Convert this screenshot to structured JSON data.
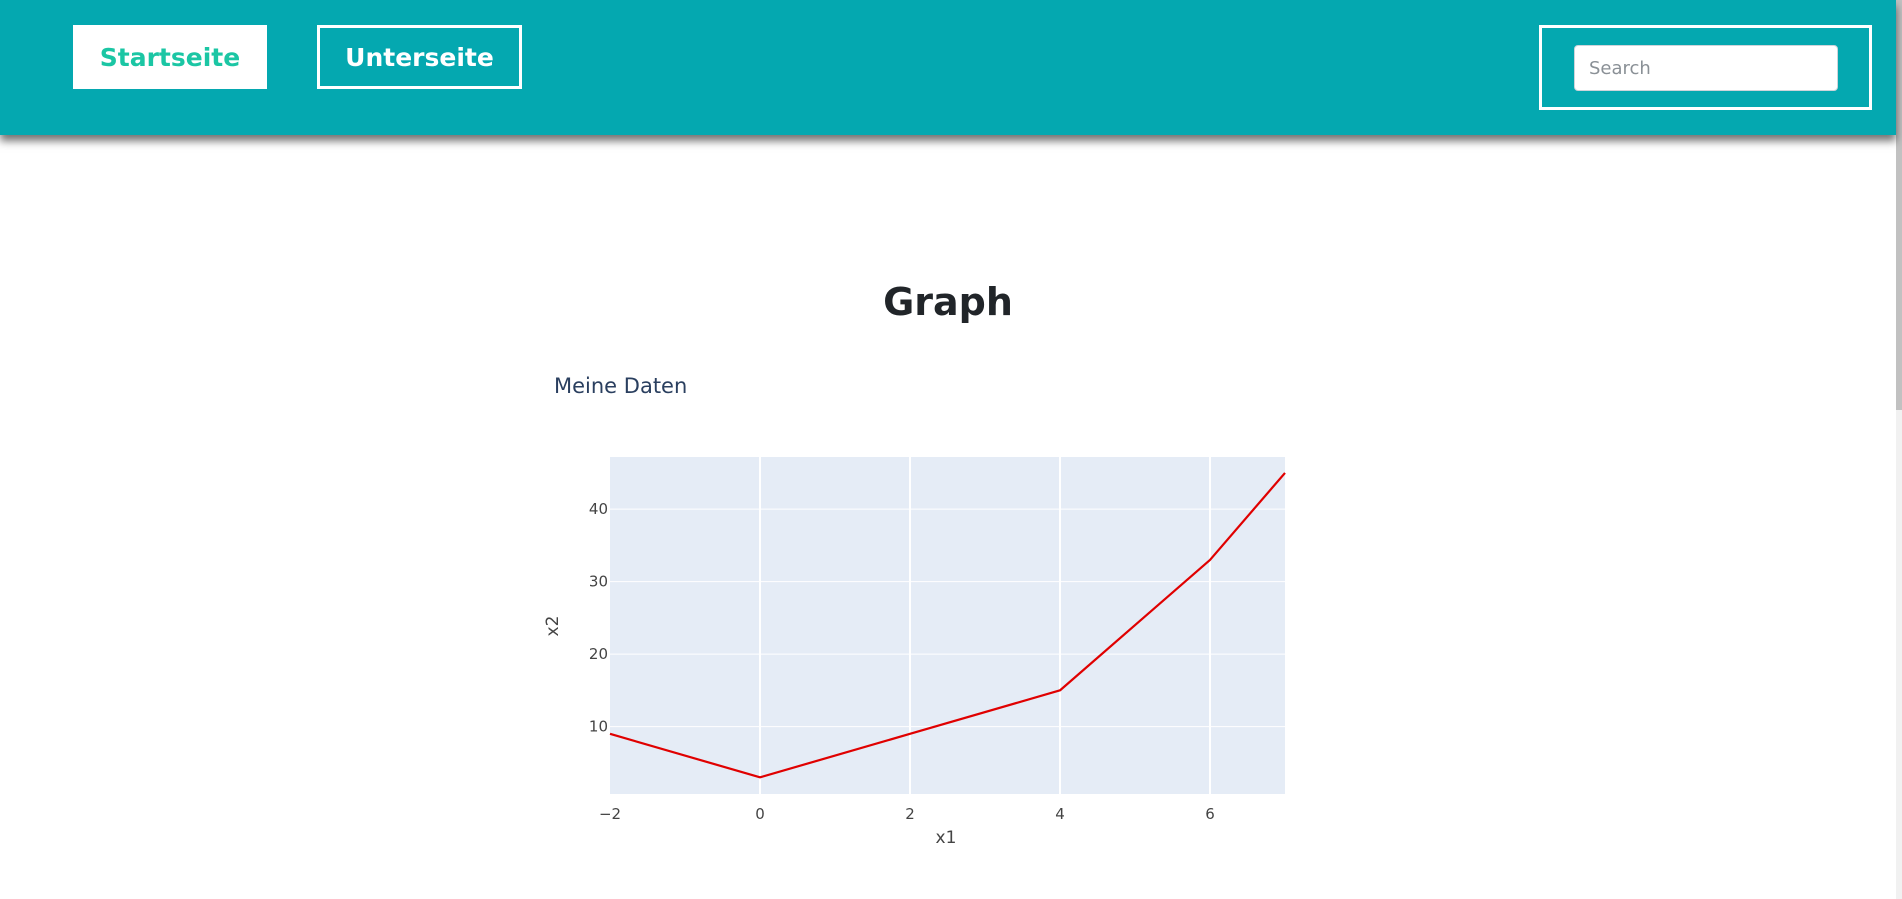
{
  "nav": {
    "home_label": "Startseite",
    "sub_label": "Unterseite",
    "search_placeholder": "Search",
    "search_value": ""
  },
  "page": {
    "heading": "Graph"
  },
  "chart_data": {
    "type": "line",
    "title": "Meine Daten",
    "xlabel": "x1",
    "ylabel": "x2",
    "xlim": [
      -2,
      7
    ],
    "ylim": [
      0.7,
      47.2
    ],
    "xticks": [
      -2,
      0,
      2,
      4,
      6
    ],
    "yticks": [
      10,
      20,
      30,
      40
    ],
    "x_tick_labels": [
      "−2",
      "0",
      "2",
      "4",
      "6"
    ],
    "y_tick_labels": [
      "10",
      "20",
      "30",
      "40"
    ],
    "grid": true,
    "plot_background": "#e5ecf6",
    "series": [
      {
        "color": "#e00000",
        "x": [
          -2,
          0,
          2,
          4,
          6,
          7
        ],
        "y": [
          9,
          3,
          9,
          15,
          33,
          45
        ]
      }
    ]
  }
}
